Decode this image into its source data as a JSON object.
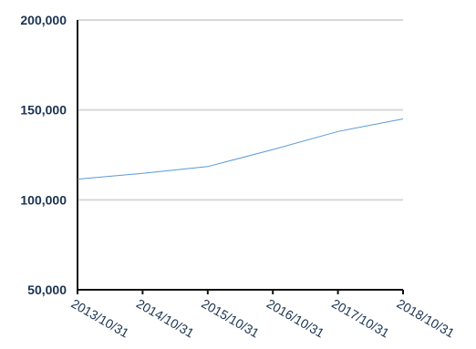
{
  "chart_data": {
    "type": "line",
    "title": "",
    "xlabel": "",
    "ylabel": "",
    "x": [
      "2013/10/31",
      "2014/10/31",
      "2015/10/31",
      "2016/10/31",
      "2017/10/31",
      "2018/10/31"
    ],
    "series": [
      {
        "values": [
          111500,
          114700,
          118500,
          128000,
          138000,
          145000
        ]
      }
    ],
    "ylim": [
      50000,
      200000
    ],
    "y_ticks": [
      50000,
      100000,
      150000,
      200000
    ],
    "y_tick_labels": [
      "50,000",
      "100,000",
      "150,000",
      "200,000"
    ],
    "grid": true,
    "legend": "none",
    "colors": {
      "line": "#5b9bd5",
      "grid": "#d8d8d8",
      "axis": "#111111",
      "text": "#1a3350"
    }
  }
}
